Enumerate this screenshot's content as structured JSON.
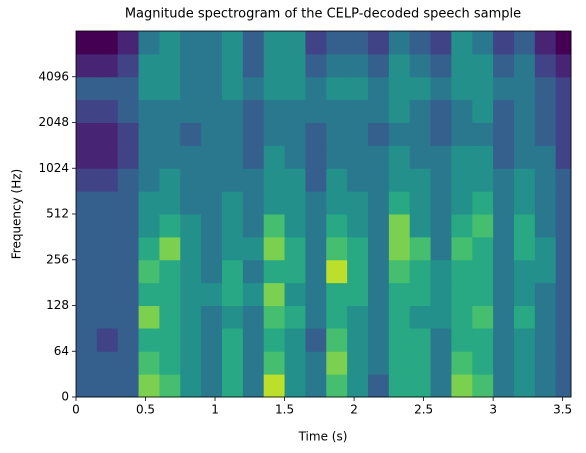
{
  "chart_data": {
    "type": "spectrogram",
    "title": "Magnitude spectrogram of the CELP-decoded speech sample",
    "xlabel": "Time (s)",
    "ylabel": "Frequency (Hz)",
    "colormap": "viridis",
    "xlim": [
      0,
      3.56
    ],
    "xticks": [
      0,
      0.5,
      1,
      1.5,
      2,
      2.5,
      3,
      3.5
    ],
    "ylim": [
      0,
      8192
    ],
    "yscale": "symlog",
    "ybase": 2,
    "ylinthresh": 64,
    "yticks": [
      0,
      64,
      128,
      256,
      512,
      1024,
      2048,
      4096
    ],
    "time_bins": [
      0,
      0.15,
      0.3,
      0.45,
      0.6,
      0.75,
      0.9,
      1.05,
      1.2,
      1.35,
      1.5,
      1.65,
      1.8,
      1.95,
      2.1,
      2.25,
      2.4,
      2.55,
      2.7,
      2.85,
      3.0,
      3.15,
      3.3,
      3.45,
      3.56
    ],
    "frequency_bins": [
      0,
      32,
      64,
      91,
      128,
      181,
      256,
      362,
      512,
      724,
      1024,
      1448,
      2048,
      2896,
      4096,
      5793,
      8192
    ],
    "z": [
      [
        0.3,
        0.3,
        0.3,
        0.8,
        0.7,
        0.5,
        0.4,
        0.6,
        0.4,
        0.9,
        0.5,
        0.4,
        0.7,
        0.5,
        0.3,
        0.6,
        0.6,
        0.4,
        0.8,
        0.7,
        0.4,
        0.5,
        0.4,
        0.3
      ],
      [
        0.3,
        0.3,
        0.3,
        0.7,
        0.6,
        0.5,
        0.4,
        0.6,
        0.4,
        0.7,
        0.5,
        0.4,
        0.8,
        0.5,
        0.4,
        0.6,
        0.6,
        0.4,
        0.7,
        0.6,
        0.4,
        0.5,
        0.4,
        0.3
      ],
      [
        0.3,
        0.2,
        0.3,
        0.6,
        0.6,
        0.5,
        0.4,
        0.6,
        0.4,
        0.6,
        0.5,
        0.3,
        0.7,
        0.5,
        0.4,
        0.6,
        0.6,
        0.4,
        0.6,
        0.6,
        0.4,
        0.5,
        0.4,
        0.3
      ],
      [
        0.3,
        0.3,
        0.3,
        0.8,
        0.6,
        0.5,
        0.4,
        0.5,
        0.4,
        0.7,
        0.6,
        0.4,
        0.6,
        0.5,
        0.4,
        0.6,
        0.5,
        0.5,
        0.6,
        0.7,
        0.4,
        0.6,
        0.4,
        0.3
      ],
      [
        0.3,
        0.3,
        0.3,
        0.6,
        0.6,
        0.5,
        0.5,
        0.6,
        0.5,
        0.8,
        0.5,
        0.4,
        0.6,
        0.6,
        0.4,
        0.6,
        0.6,
        0.5,
        0.6,
        0.6,
        0.4,
        0.5,
        0.4,
        0.3
      ],
      [
        0.3,
        0.3,
        0.3,
        0.7,
        0.6,
        0.5,
        0.4,
        0.6,
        0.4,
        0.6,
        0.6,
        0.4,
        0.9,
        0.6,
        0.4,
        0.7,
        0.6,
        0.5,
        0.6,
        0.6,
        0.4,
        0.5,
        0.5,
        0.3
      ],
      [
        0.3,
        0.3,
        0.3,
        0.6,
        0.8,
        0.5,
        0.4,
        0.5,
        0.5,
        0.8,
        0.6,
        0.4,
        0.7,
        0.6,
        0.4,
        0.8,
        0.7,
        0.4,
        0.7,
        0.6,
        0.4,
        0.6,
        0.5,
        0.3
      ],
      [
        0.3,
        0.3,
        0.3,
        0.5,
        0.6,
        0.5,
        0.4,
        0.5,
        0.4,
        0.7,
        0.5,
        0.4,
        0.6,
        0.5,
        0.4,
        0.8,
        0.5,
        0.4,
        0.6,
        0.7,
        0.4,
        0.6,
        0.4,
        0.3
      ],
      [
        0.3,
        0.3,
        0.3,
        0.5,
        0.5,
        0.4,
        0.4,
        0.5,
        0.4,
        0.5,
        0.5,
        0.4,
        0.5,
        0.5,
        0.4,
        0.6,
        0.5,
        0.4,
        0.5,
        0.6,
        0.4,
        0.5,
        0.4,
        0.3
      ],
      [
        0.2,
        0.2,
        0.3,
        0.4,
        0.5,
        0.4,
        0.4,
        0.4,
        0.4,
        0.5,
        0.5,
        0.3,
        0.5,
        0.4,
        0.4,
        0.5,
        0.5,
        0.4,
        0.5,
        0.5,
        0.4,
        0.5,
        0.4,
        0.3
      ],
      [
        0.1,
        0.1,
        0.2,
        0.4,
        0.4,
        0.4,
        0.4,
        0.4,
        0.3,
        0.5,
        0.4,
        0.3,
        0.4,
        0.4,
        0.4,
        0.5,
        0.4,
        0.4,
        0.5,
        0.5,
        0.3,
        0.4,
        0.4,
        0.2
      ],
      [
        0.1,
        0.1,
        0.2,
        0.4,
        0.4,
        0.3,
        0.4,
        0.4,
        0.3,
        0.4,
        0.4,
        0.3,
        0.4,
        0.4,
        0.3,
        0.4,
        0.4,
        0.3,
        0.4,
        0.4,
        0.3,
        0.4,
        0.3,
        0.2
      ],
      [
        0.2,
        0.2,
        0.3,
        0.4,
        0.4,
        0.4,
        0.4,
        0.4,
        0.3,
        0.4,
        0.4,
        0.4,
        0.4,
        0.4,
        0.4,
        0.5,
        0.4,
        0.3,
        0.4,
        0.5,
        0.3,
        0.4,
        0.3,
        0.2
      ],
      [
        0.3,
        0.3,
        0.3,
        0.5,
        0.5,
        0.4,
        0.4,
        0.5,
        0.4,
        0.5,
        0.5,
        0.4,
        0.5,
        0.5,
        0.4,
        0.5,
        0.5,
        0.4,
        0.5,
        0.5,
        0.4,
        0.4,
        0.3,
        0.2
      ],
      [
        0.1,
        0.1,
        0.2,
        0.5,
        0.5,
        0.4,
        0.4,
        0.5,
        0.3,
        0.5,
        0.5,
        0.3,
        0.4,
        0.4,
        0.3,
        0.5,
        0.4,
        0.3,
        0.5,
        0.5,
        0.3,
        0.4,
        0.2,
        0.1
      ],
      [
        0.0,
        0.0,
        0.1,
        0.4,
        0.5,
        0.4,
        0.4,
        0.5,
        0.3,
        0.5,
        0.5,
        0.2,
        0.3,
        0.3,
        0.2,
        0.4,
        0.3,
        0.2,
        0.5,
        0.4,
        0.2,
        0.3,
        0.1,
        0.0
      ]
    ]
  }
}
